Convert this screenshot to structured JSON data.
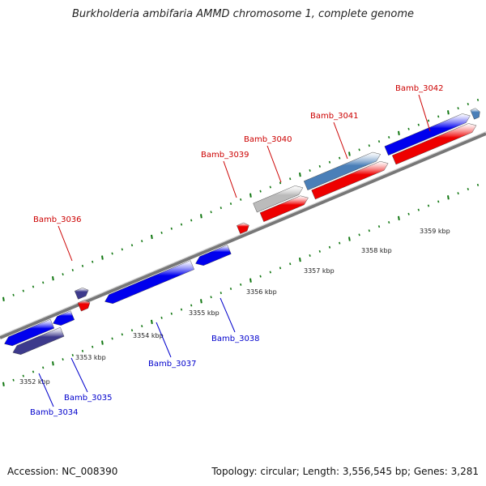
{
  "title": "Burkholderia ambifaria AMMD chromosome 1, complete genome",
  "footer": {
    "accession": "Accession: NC_008390",
    "topology": "Topology: circular; Length: 3,556,545 bp; Genes: 3,281"
  },
  "colors": {
    "forward_label": "#cc0000",
    "reverse_label": "#0000cc",
    "tick": "#117711",
    "backbone": "#888888",
    "cds_red": "#ee0000",
    "cds_blue": "#0000ee",
    "cds_steel": "#4a7fb8",
    "cds_grey": "#bbbbbb",
    "cds_purple": "#3d3a8c"
  },
  "kbp_labels": [
    "3352 kbp",
    "3353 kbp",
    "3354 kbp",
    "3355 kbp",
    "3356 kbp",
    "3357 kbp",
    "3358 kbp",
    "3359 kbp"
  ],
  "gene_labels_forward": [
    "Bamb_3036",
    "Bamb_3039",
    "Bamb_3040",
    "Bamb_3041",
    "Bamb_3042"
  ],
  "gene_labels_reverse": [
    "Bamb_3034",
    "Bamb_3035",
    "Bamb_3037",
    "Bamb_3038"
  ]
}
